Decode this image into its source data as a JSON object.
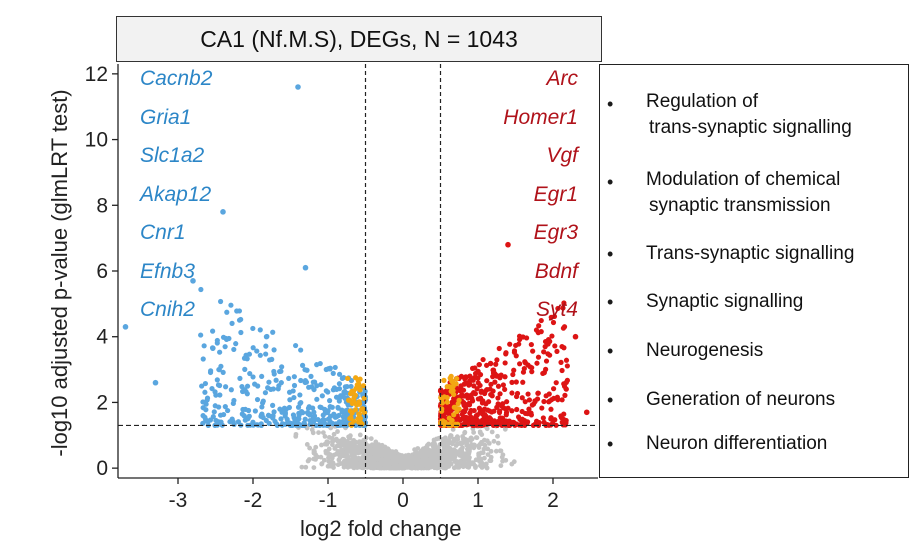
{
  "chart_data": {
    "type": "scatter",
    "title": "CA1 (Nf.M.S), DEGs, N = 1043",
    "xlabel": "log2 fold change",
    "ylabel": "-log10 adjusted p-value (glmLRT test)",
    "xlim": [
      -3.8,
      2.6
    ],
    "ylim": [
      -0.3,
      12.3
    ],
    "x_ticks": [
      -3,
      -2,
      -1,
      0,
      1,
      2
    ],
    "y_ticks": [
      0,
      2,
      4,
      6,
      8,
      10,
      12
    ],
    "thresholds": {
      "log2fc": [
        -0.5,
        0.5
      ],
      "neg_log10_padj": 1.3
    },
    "colors": {
      "down": "#5aa6df",
      "up": "#dd1414",
      "borderline": "#f3a712",
      "ns": "#c2c2c2"
    },
    "groups": [
      {
        "name": "down",
        "color": "#5aa6df",
        "approx_x_range": [
          -3.7,
          -0.5
        ],
        "approx_y_range": [
          1.3,
          6.2
        ]
      },
      {
        "name": "up",
        "color": "#dd1414",
        "approx_x_range": [
          0.5,
          2.5
        ],
        "approx_y_range": [
          1.3,
          6.8
        ]
      },
      {
        "name": "borderline",
        "color": "#f3a712",
        "approx_x_range": [
          -0.75,
          0.75
        ],
        "approx_y_range": [
          1.3,
          2.8
        ]
      },
      {
        "name": "ns",
        "color": "#c2c2c2",
        "approx_x_range": [
          -1.5,
          1.5
        ],
        "approx_y_range": [
          0,
          1.3
        ]
      }
    ],
    "outliers": [
      {
        "x": -1.4,
        "y": 11.6,
        "group": "down"
      },
      {
        "x": -2.4,
        "y": 7.8,
        "group": "down"
      },
      {
        "x": -2.8,
        "y": 5.7,
        "group": "down"
      },
      {
        "x": -3.7,
        "y": 4.3,
        "group": "down"
      },
      {
        "x": -3.3,
        "y": 2.6,
        "group": "down"
      },
      {
        "x": -1.3,
        "y": 6.1,
        "group": "down"
      },
      {
        "x": 1.4,
        "y": 6.8,
        "group": "up"
      },
      {
        "x": 2.45,
        "y": 1.7,
        "group": "up"
      },
      {
        "x": 2.3,
        "y": 4.0,
        "group": "up"
      }
    ],
    "labeled_genes_down": [
      "Cacnb2",
      "Gria1",
      "Slc1a2",
      "Akap12",
      "Cnr1",
      "Efnb3",
      "Cnih2"
    ],
    "labeled_genes_up": [
      "Arc",
      "Homer1",
      "Vgf",
      "Egr1",
      "Egr3",
      "Bdnf",
      "Syt4"
    ]
  },
  "go_terms": [
    [
      "Regulation of",
      "trans-synaptic signalling"
    ],
    [
      "Modulation of chemical",
      "synaptic transmission"
    ],
    [
      "Trans-synaptic signalling"
    ],
    [
      "Synaptic signalling"
    ],
    [
      "Neurogenesis"
    ],
    [
      "Generation of neurons"
    ],
    [
      "Neuron differentiation"
    ]
  ],
  "bullet": "•"
}
